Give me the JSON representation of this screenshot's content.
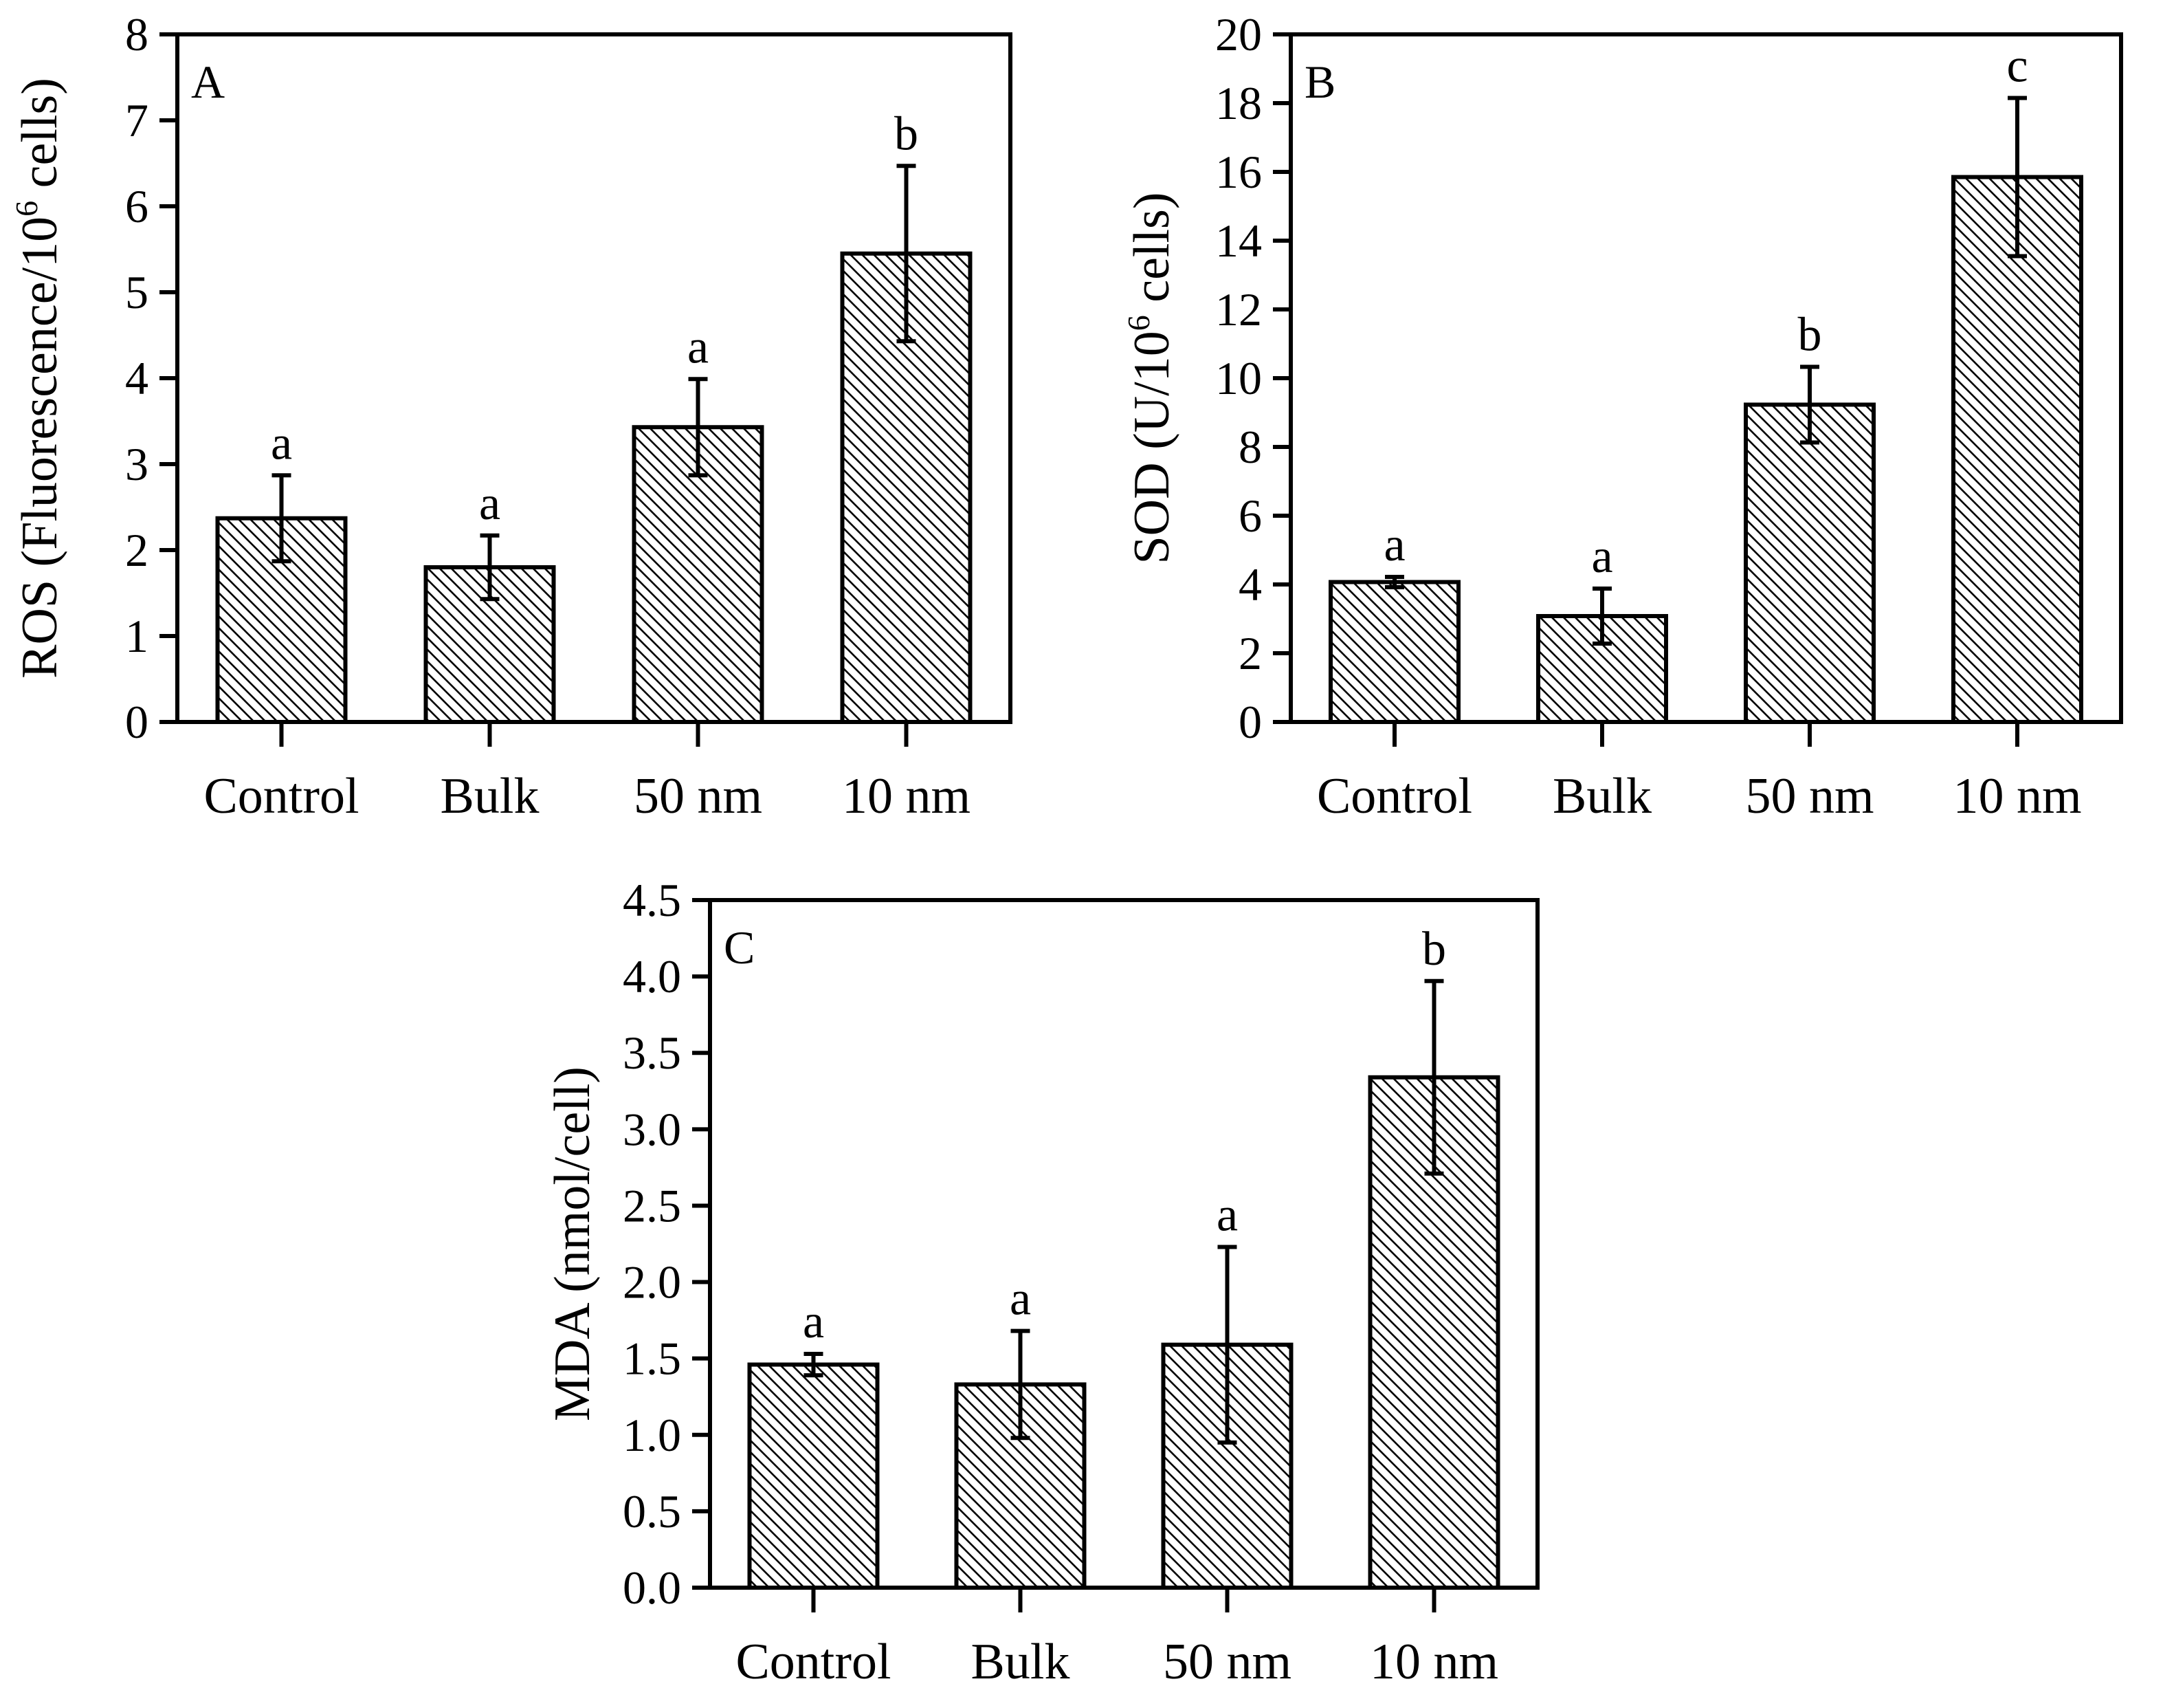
{
  "chart_data": [
    {
      "type": "bar",
      "panel_label": "A",
      "categories": [
        "Control",
        "Bulk",
        "50 nm",
        "10 nm"
      ],
      "values": [
        2.37,
        1.8,
        3.43,
        5.45
      ],
      "errors": [
        0.5,
        0.37,
        0.56,
        1.02
      ],
      "significance": [
        "a",
        "a",
        "a",
        "b"
      ],
      "ylabel": {
        "main": "ROS (Fluorescence/10",
        "sup": "6",
        "tail": " cells)"
      },
      "ylim": [
        0,
        8
      ],
      "yticks": [
        "0",
        "1",
        "2",
        "3",
        "4",
        "5",
        "6",
        "7",
        "8"
      ],
      "grid": false,
      "fill_pattern": "diagonal-hatch"
    },
    {
      "type": "bar",
      "panel_label": "B",
      "categories": [
        "Control",
        "Bulk",
        "50 nm",
        "10 nm"
      ],
      "values": [
        4.07,
        3.08,
        9.23,
        15.85
      ],
      "errors": [
        0.15,
        0.8,
        1.1,
        2.3
      ],
      "significance": [
        "a",
        "a",
        "b",
        "c"
      ],
      "ylabel": {
        "main": "SOD (U/10",
        "sup": "6",
        "tail": " cells)"
      },
      "ylim": [
        0,
        20
      ],
      "yticks": [
        "0",
        "2",
        "4",
        "6",
        "8",
        "10",
        "12",
        "14",
        "16",
        "18",
        "20"
      ],
      "grid": false,
      "fill_pattern": "diagonal-hatch"
    },
    {
      "type": "bar",
      "panel_label": "C",
      "categories": [
        "Control",
        "Bulk",
        "50 nm",
        "10 nm"
      ],
      "values": [
        1.46,
        1.33,
        1.59,
        3.34
      ],
      "errors": [
        0.07,
        0.35,
        0.64,
        0.63
      ],
      "significance": [
        "a",
        "a",
        "a",
        "b"
      ],
      "ylabel": {
        "main": "MDA (nmol/cell)",
        "sup": "",
        "tail": ""
      },
      "ylim": [
        0,
        4.5
      ],
      "yticks": [
        "0.0",
        "0.5",
        "1.0",
        "1.5",
        "2.0",
        "2.5",
        "3.0",
        "3.5",
        "4.0",
        "4.5"
      ],
      "grid": false,
      "fill_pattern": "diagonal-hatch"
    }
  ],
  "colors": {
    "ink": "#000000",
    "bar_fill": "#ffffff",
    "background": "#ffffff"
  }
}
